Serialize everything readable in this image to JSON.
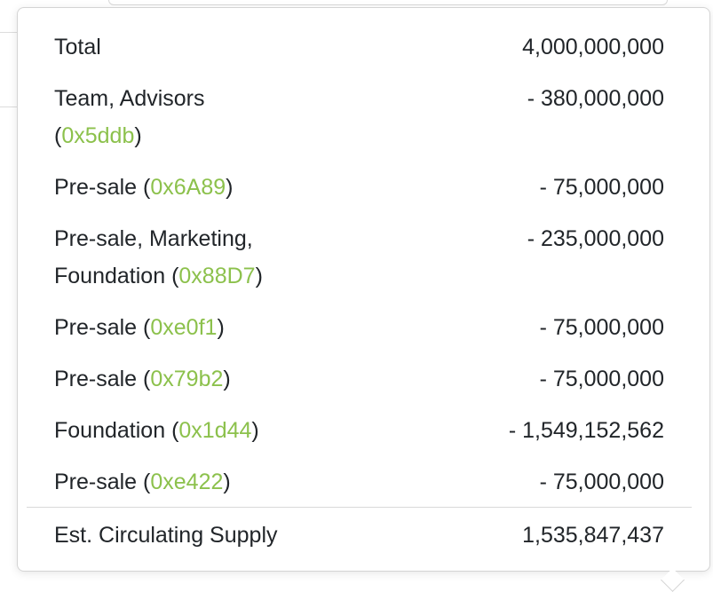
{
  "supply_popover": {
    "total": {
      "label": "Total",
      "value": "4,000,000,000"
    },
    "rows": [
      {
        "label_prefix": "Team, Advisors",
        "label_open": "(",
        "address": "0x5ddb",
        "label_close": ")",
        "value": "- 380,000,000"
      },
      {
        "label_prefix": "Pre-sale",
        "label_open": "(",
        "address": "0x6A89",
        "label_close": ")",
        "value": "- 75,000,000"
      },
      {
        "label_prefix": "Pre-sale, Marketing,",
        "label_line2": "Foundation",
        "label_open": "(",
        "address": "0x88D7",
        "label_close": ")",
        "value": "- 235,000,000"
      },
      {
        "label_prefix": "Pre-sale",
        "label_open": "(",
        "address": "0xe0f1",
        "label_close": ")",
        "value": "- 75,000,000"
      },
      {
        "label_prefix": "Pre-sale",
        "label_open": "(",
        "address": "0x79b2",
        "label_close": ")",
        "value": "- 75,000,000"
      },
      {
        "label_prefix": "Foundation",
        "label_open": "(",
        "address": "0x1d44",
        "label_close": ")",
        "value": "- 1,549,152,562"
      },
      {
        "label_prefix": "Pre-sale",
        "label_open": "(",
        "address": "0xe422",
        "label_close": ")",
        "value": "- 75,000,000"
      }
    ],
    "circulating": {
      "label": "Est. Circulating Supply",
      "value": "1,535,847,437"
    },
    "colors": {
      "address_link": "#8cc14c",
      "text": "#212529",
      "border": "#d4d4d4"
    }
  }
}
